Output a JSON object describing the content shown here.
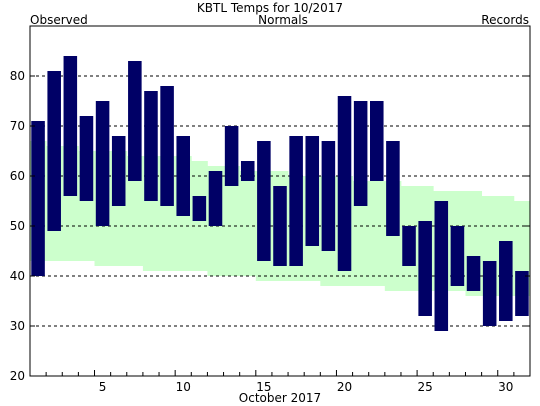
{
  "chart_data": {
    "type": "bar",
    "title": "KBTL Temps for  10/2017",
    "xlabel": "October 2017",
    "ylabel": "",
    "legend": [
      {
        "name": "Observed",
        "color": "#000066"
      },
      {
        "name": "Normals",
        "color": "#006600"
      },
      {
        "name": "Records",
        "color": "#bb77dd"
      }
    ],
    "xlim": [
      0.5,
      31.5
    ],
    "ylim": [
      20,
      90
    ],
    "x_ticks": [
      5,
      10,
      15,
      20,
      25,
      30
    ],
    "y_ticks": [
      20,
      30,
      40,
      50,
      60,
      70,
      80
    ],
    "y_grid": [
      30,
      40,
      50,
      60,
      70,
      80
    ],
    "grid": true,
    "colors": {
      "observed_bar": "#000066",
      "normals_band": "#ccffcc",
      "plot_background": "#ffffff",
      "grid": "#000000"
    },
    "observed": {
      "days": [
        1,
        2,
        3,
        4,
        5,
        6,
        7,
        8,
        9,
        10,
        11,
        12,
        13,
        14,
        15,
        16,
        17,
        18,
        19,
        20,
        21,
        22,
        23,
        24,
        25,
        26,
        27,
        28,
        29,
        30,
        31
      ],
      "high": [
        71,
        81,
        84,
        72,
        75,
        68,
        83,
        77,
        78,
        68,
        56,
        61,
        70,
        63,
        67,
        58,
        68,
        68,
        67,
        76,
        75,
        75,
        67,
        50,
        51,
        55,
        50,
        44,
        43,
        47,
        41
      ],
      "low": [
        40,
        49,
        56,
        55,
        50,
        54,
        59,
        55,
        54,
        52,
        51,
        50,
        58,
        59,
        43,
        42,
        42,
        46,
        45,
        41,
        54,
        59,
        48,
        42,
        32,
        29,
        38,
        37,
        30,
        31,
        32
      ]
    },
    "normals": {
      "days": [
        1,
        2,
        3,
        4,
        5,
        6,
        7,
        8,
        9,
        10,
        11,
        12,
        13,
        14,
        15,
        16,
        17,
        18,
        19,
        20,
        21,
        22,
        23,
        24,
        25,
        26,
        27,
        28,
        29,
        30,
        31
      ],
      "high": [
        67,
        66,
        66,
        65,
        65,
        65,
        64,
        64,
        64,
        64,
        63,
        62,
        62,
        61,
        61,
        61,
        60,
        60,
        60,
        60,
        59,
        59,
        59,
        58,
        58,
        57,
        57,
        57,
        56,
        56,
        55
      ],
      "low": [
        43,
        43,
        43,
        43,
        42,
        42,
        42,
        41,
        41,
        41,
        41,
        40,
        40,
        40,
        39,
        39,
        39,
        39,
        38,
        38,
        38,
        38,
        37,
        37,
        37,
        37,
        37,
        36,
        36,
        36,
        36
      ]
    }
  }
}
